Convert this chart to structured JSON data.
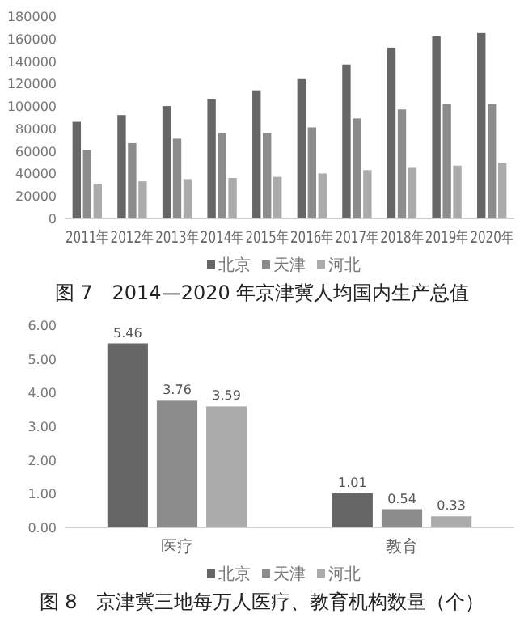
{
  "chart_data": [
    {
      "type": "bar",
      "title": "图 7　2014—2020 年京津冀人均国内生产总值",
      "categories": [
        "2011年",
        "2012年",
        "2013年",
        "2014年",
        "2015年",
        "2016年",
        "2017年",
        "2018年",
        "2019年",
        "2020年"
      ],
      "series": [
        {
          "name": "北京",
          "color": "#666666",
          "values": [
            86000,
            92000,
            100000,
            106000,
            114000,
            124000,
            137000,
            152000,
            162000,
            165000
          ]
        },
        {
          "name": "天津",
          "color": "#8c8c8c",
          "values": [
            61000,
            67000,
            71000,
            76000,
            76000,
            81000,
            89000,
            97000,
            102000,
            102000
          ]
        },
        {
          "name": "河北",
          "color": "#ababab",
          "values": [
            31000,
            33000,
            35000,
            36000,
            37000,
            40000,
            43000,
            45000,
            47000,
            49000
          ]
        }
      ],
      "ylim": [
        0,
        180000
      ],
      "yticks": [
        0,
        20000,
        40000,
        60000,
        80000,
        100000,
        120000,
        140000,
        160000,
        180000
      ],
      "legend": "bottom"
    },
    {
      "type": "bar",
      "title": "图 8　京津冀三地每万人医疗、教育机构数量（个）",
      "categories": [
        "医疗",
        "教育"
      ],
      "series": [
        {
          "name": "北京",
          "color": "#666666",
          "values": [
            5.46,
            1.01
          ]
        },
        {
          "name": "天津",
          "color": "#8c8c8c",
          "values": [
            3.76,
            0.54
          ]
        },
        {
          "name": "河北",
          "color": "#ababab",
          "values": [
            3.59,
            0.33
          ]
        }
      ],
      "ylim": [
        0,
        6
      ],
      "yticks": [
        {
          "value": 0,
          "label": "0.00"
        },
        {
          "value": 1,
          "label": "1.00"
        },
        {
          "value": 2,
          "label": "2.00"
        },
        {
          "value": 3,
          "label": "3.00"
        },
        {
          "value": 4,
          "label": "4.00"
        },
        {
          "value": 5,
          "label": "5.00"
        },
        {
          "value": 6,
          "label": "6.00"
        }
      ],
      "data_labels": true,
      "legend": "bottom"
    }
  ]
}
